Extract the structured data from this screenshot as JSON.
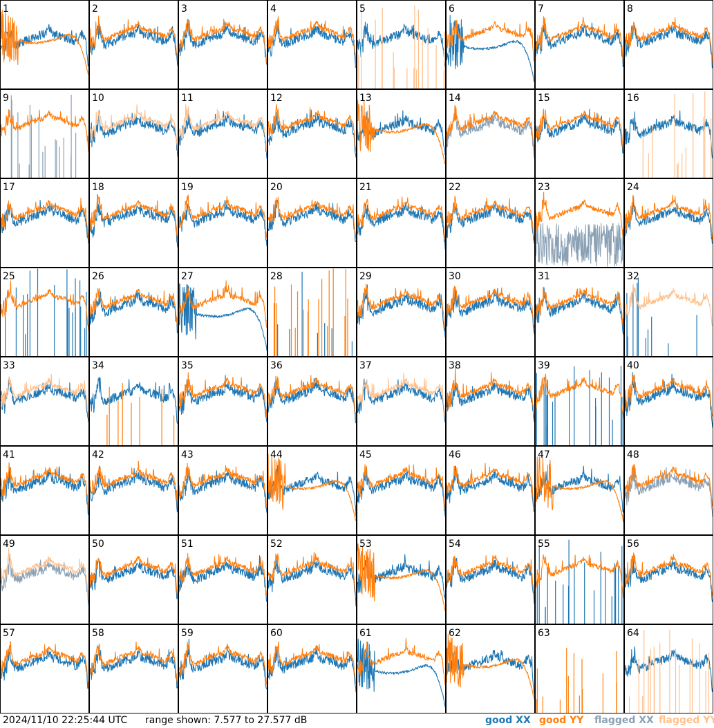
{
  "timestamp": "2024/11/10 22:25:44 UTC",
  "range_text": "range shown: 7.577 to 27.577 dB",
  "legend": {
    "good_xx": "good XX",
    "good_yy": "good YY",
    "flagged_xx": "flagged XX",
    "flagged_yy": "flagged YY"
  },
  "colors": {
    "good_xx": "#1f77b4",
    "good_yy": "#ff7f0e",
    "flagged_xx": "#8aa1b5",
    "flagged_yy": "#ffc08c",
    "border": "#000000"
  },
  "chart_data": {
    "type": "line",
    "grid": "8x8 small multiples",
    "ylim": [
      7.577,
      27.577
    ],
    "y_unit": "dB",
    "panels": [
      {
        "id": "1",
        "xx": "good",
        "yy": "good",
        "xx_shape": "normal",
        "yy_shape": "decline"
      },
      {
        "id": "2",
        "xx": "good",
        "yy": "good",
        "xx_shape": "normal",
        "yy_shape": "normal"
      },
      {
        "id": "3",
        "xx": "good",
        "yy": "good",
        "xx_shape": "normal",
        "yy_shape": "normal"
      },
      {
        "id": "4",
        "xx": "good",
        "yy": "good",
        "xx_shape": "normal",
        "yy_shape": "normal"
      },
      {
        "id": "5",
        "xx": "good",
        "yy": "flagged",
        "xx_shape": "normal",
        "yy_shape": "spikes"
      },
      {
        "id": "6",
        "xx": "good",
        "yy": "good",
        "xx_shape": "decline",
        "yy_shape": "normal"
      },
      {
        "id": "7",
        "xx": "good",
        "yy": "good",
        "xx_shape": "normal",
        "yy_shape": "normal"
      },
      {
        "id": "8",
        "xx": "good",
        "yy": "good",
        "xx_shape": "normal",
        "yy_shape": "normal"
      },
      {
        "id": "9",
        "xx": "flagged",
        "yy": "good",
        "xx_shape": "spikes",
        "yy_shape": "normal"
      },
      {
        "id": "10",
        "xx": "good",
        "yy": "flagged",
        "xx_shape": "normal",
        "yy_shape": "normal"
      },
      {
        "id": "11",
        "xx": "good",
        "yy": "flagged",
        "xx_shape": "normal",
        "yy_shape": "normal"
      },
      {
        "id": "12",
        "xx": "good",
        "yy": "good",
        "xx_shape": "normal",
        "yy_shape": "normal"
      },
      {
        "id": "13",
        "xx": "good",
        "yy": "good",
        "xx_shape": "normal",
        "yy_shape": "decline"
      },
      {
        "id": "14",
        "xx": "flagged",
        "yy": "good",
        "xx_shape": "normal",
        "yy_shape": "normal"
      },
      {
        "id": "15",
        "xx": "good",
        "yy": "good",
        "xx_shape": "normal",
        "yy_shape": "normal"
      },
      {
        "id": "16",
        "xx": "good",
        "yy": "flagged",
        "xx_shape": "normal",
        "yy_shape": "spikes"
      },
      {
        "id": "17",
        "xx": "good",
        "yy": "good",
        "xx_shape": "normal",
        "yy_shape": "normal"
      },
      {
        "id": "18",
        "xx": "good",
        "yy": "good",
        "xx_shape": "normal",
        "yy_shape": "normal"
      },
      {
        "id": "19",
        "xx": "good",
        "yy": "good",
        "xx_shape": "normal",
        "yy_shape": "normal"
      },
      {
        "id": "20",
        "xx": "good",
        "yy": "good",
        "xx_shape": "normal",
        "yy_shape": "normal"
      },
      {
        "id": "21",
        "xx": "good",
        "yy": "good",
        "xx_shape": "normal",
        "yy_shape": "normal"
      },
      {
        "id": "22",
        "xx": "good",
        "yy": "good",
        "xx_shape": "normal",
        "yy_shape": "normal"
      },
      {
        "id": "23",
        "xx": "flagged",
        "yy": "good",
        "xx_shape": "noisy",
        "yy_shape": "normal"
      },
      {
        "id": "24",
        "xx": "good",
        "yy": "good",
        "xx_shape": "normal",
        "yy_shape": "normal"
      },
      {
        "id": "25",
        "xx": "good",
        "yy": "good",
        "xx_shape": "spikes",
        "yy_shape": "normal"
      },
      {
        "id": "26",
        "xx": "good",
        "yy": "good",
        "xx_shape": "normal",
        "yy_shape": "normal"
      },
      {
        "id": "27",
        "xx": "good",
        "yy": "good",
        "xx_shape": "decline",
        "yy_shape": "normal"
      },
      {
        "id": "28",
        "xx": "good",
        "yy": "good",
        "xx_shape": "spikes",
        "yy_shape": "spikes"
      },
      {
        "id": "29",
        "xx": "good",
        "yy": "good",
        "xx_shape": "normal",
        "yy_shape": "normal"
      },
      {
        "id": "30",
        "xx": "good",
        "yy": "good",
        "xx_shape": "normal",
        "yy_shape": "normal"
      },
      {
        "id": "31",
        "xx": "good",
        "yy": "good",
        "xx_shape": "normal",
        "yy_shape": "normal"
      },
      {
        "id": "32",
        "xx": "good",
        "yy": "flagged",
        "xx_shape": "spikes",
        "yy_shape": "normal"
      },
      {
        "id": "33",
        "xx": "good",
        "yy": "flagged",
        "xx_shape": "normal",
        "yy_shape": "normal"
      },
      {
        "id": "34",
        "xx": "good",
        "yy": "good",
        "xx_shape": "normal",
        "yy_shape": "spikes"
      },
      {
        "id": "35",
        "xx": "good",
        "yy": "good",
        "xx_shape": "normal",
        "yy_shape": "normal"
      },
      {
        "id": "36",
        "xx": "good",
        "yy": "good",
        "xx_shape": "normal",
        "yy_shape": "normal"
      },
      {
        "id": "37",
        "xx": "good",
        "yy": "flagged",
        "xx_shape": "normal",
        "yy_shape": "normal"
      },
      {
        "id": "38",
        "xx": "good",
        "yy": "good",
        "xx_shape": "normal",
        "yy_shape": "normal"
      },
      {
        "id": "39",
        "xx": "good",
        "yy": "good",
        "xx_shape": "spikes",
        "yy_shape": "normal"
      },
      {
        "id": "40",
        "xx": "good",
        "yy": "good",
        "xx_shape": "normal",
        "yy_shape": "normal"
      },
      {
        "id": "41",
        "xx": "good",
        "yy": "good",
        "xx_shape": "normal",
        "yy_shape": "normal"
      },
      {
        "id": "42",
        "xx": "good",
        "yy": "good",
        "xx_shape": "normal",
        "yy_shape": "normal"
      },
      {
        "id": "43",
        "xx": "good",
        "yy": "good",
        "xx_shape": "normal",
        "yy_shape": "normal"
      },
      {
        "id": "44",
        "xx": "good",
        "yy": "good",
        "xx_shape": "normal",
        "yy_shape": "decline"
      },
      {
        "id": "45",
        "xx": "good",
        "yy": "good",
        "xx_shape": "normal",
        "yy_shape": "normal"
      },
      {
        "id": "46",
        "xx": "good",
        "yy": "good",
        "xx_shape": "normal",
        "yy_shape": "normal"
      },
      {
        "id": "47",
        "xx": "good",
        "yy": "good",
        "xx_shape": "normal",
        "yy_shape": "decline"
      },
      {
        "id": "48",
        "xx": "flagged",
        "yy": "good",
        "xx_shape": "normal",
        "yy_shape": "normal"
      },
      {
        "id": "49",
        "xx": "flagged",
        "yy": "flagged",
        "xx_shape": "normal",
        "yy_shape": "normal"
      },
      {
        "id": "50",
        "xx": "good",
        "yy": "good",
        "xx_shape": "normal",
        "yy_shape": "normal"
      },
      {
        "id": "51",
        "xx": "good",
        "yy": "good",
        "xx_shape": "normal",
        "yy_shape": "normal"
      },
      {
        "id": "52",
        "xx": "good",
        "yy": "good",
        "xx_shape": "normal",
        "yy_shape": "normal"
      },
      {
        "id": "53",
        "xx": "good",
        "yy": "good",
        "xx_shape": "normal",
        "yy_shape": "decline"
      },
      {
        "id": "54",
        "xx": "good",
        "yy": "good",
        "xx_shape": "normal",
        "yy_shape": "normal"
      },
      {
        "id": "55",
        "xx": "good",
        "yy": "good",
        "xx_shape": "spikes",
        "yy_shape": "normal"
      },
      {
        "id": "56",
        "xx": "good",
        "yy": "good",
        "xx_shape": "normal",
        "yy_shape": "normal"
      },
      {
        "id": "57",
        "xx": "good",
        "yy": "good",
        "xx_shape": "normal",
        "yy_shape": "normal"
      },
      {
        "id": "58",
        "xx": "good",
        "yy": "good",
        "xx_shape": "normal",
        "yy_shape": "normal"
      },
      {
        "id": "59",
        "xx": "good",
        "yy": "good",
        "xx_shape": "normal",
        "yy_shape": "normal"
      },
      {
        "id": "60",
        "xx": "good",
        "yy": "good",
        "xx_shape": "normal",
        "yy_shape": "normal"
      },
      {
        "id": "61",
        "xx": "good",
        "yy": "good",
        "xx_shape": "decline",
        "yy_shape": "normal"
      },
      {
        "id": "62",
        "xx": "good",
        "yy": "good",
        "xx_shape": "normal",
        "yy_shape": "decline"
      },
      {
        "id": "63",
        "xx": "good",
        "yy": "good",
        "xx_shape": "none",
        "yy_shape": "spikes"
      },
      {
        "id": "64",
        "xx": "good",
        "yy": "flagged",
        "xx_shape": "normal",
        "yy_shape": "spikes"
      }
    ]
  }
}
